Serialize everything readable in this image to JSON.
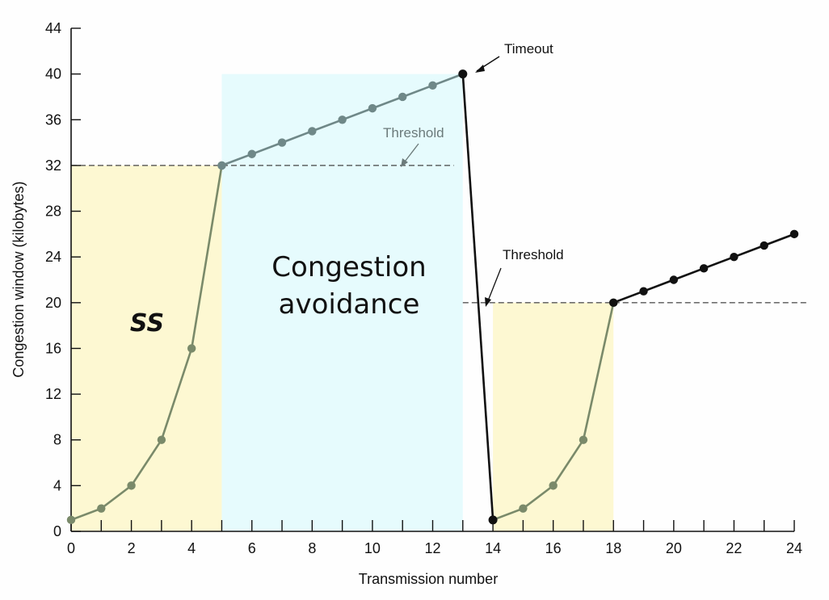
{
  "chart_data": {
    "type": "line",
    "xlabel": "Transmission number",
    "ylabel": "Congestion window (kilobytes)",
    "xlim": [
      0,
      24
    ],
    "ylim": [
      0,
      44
    ],
    "x_ticks": [
      0,
      2,
      4,
      6,
      8,
      10,
      12,
      14,
      16,
      18,
      20,
      22,
      24
    ],
    "y_ticks": [
      0,
      4,
      8,
      12,
      16,
      20,
      24,
      28,
      32,
      36,
      40,
      44
    ],
    "grid": false,
    "series": [
      {
        "style": "slow-start-first",
        "color": "#7a8a6a",
        "points": [
          [
            0,
            1
          ],
          [
            1,
            2
          ],
          [
            2,
            4
          ],
          [
            3,
            8
          ],
          [
            4,
            16
          ],
          [
            5,
            32
          ]
        ]
      },
      {
        "style": "congestion-avoidance",
        "color": "#6f8888",
        "points": [
          [
            5,
            32
          ],
          [
            6,
            33
          ],
          [
            7,
            34
          ],
          [
            8,
            35
          ],
          [
            9,
            36
          ],
          [
            10,
            37
          ],
          [
            11,
            38
          ],
          [
            12,
            39
          ],
          [
            13,
            40
          ]
        ]
      },
      {
        "style": "timeout-drop",
        "color": "#111111",
        "points": [
          [
            13,
            40
          ],
          [
            14,
            1
          ]
        ]
      },
      {
        "style": "slow-start-second",
        "color": "#7a8a6a",
        "points": [
          [
            14,
            1
          ],
          [
            15,
            2
          ],
          [
            16,
            4
          ],
          [
            17,
            8
          ],
          [
            18,
            20
          ]
        ]
      },
      {
        "style": "linear-growth",
        "color": "#111111",
        "points": [
          [
            18,
            20
          ],
          [
            19,
            21
          ],
          [
            20,
            22
          ],
          [
            21,
            23
          ],
          [
            22,
            24
          ],
          [
            23,
            25
          ],
          [
            24,
            26
          ]
        ]
      }
    ],
    "thresholds": [
      {
        "value": 32,
        "x_range": [
          0,
          12.7
        ]
      },
      {
        "value": 20,
        "x_range": [
          13,
          24.4
        ]
      }
    ],
    "regions": [
      {
        "name": "ss-1",
        "x_range": [
          0,
          5
        ],
        "y_max": 32,
        "color": "#fdf8d2"
      },
      {
        "name": "congestion-avoidance",
        "x_range": [
          5,
          13
        ],
        "y_max": 40,
        "color": "#e6fbfd"
      },
      {
        "name": "ss-2",
        "x_range": [
          14,
          18
        ],
        "y_max": 20,
        "color": "#fdf8d2"
      }
    ],
    "annotations": {
      "timeout": "Timeout",
      "threshold_upper": "Threshold",
      "threshold_lower": "Threshold",
      "ss": "SS",
      "ca_line1": "Congestion",
      "ca_line2": "avoidance"
    }
  }
}
